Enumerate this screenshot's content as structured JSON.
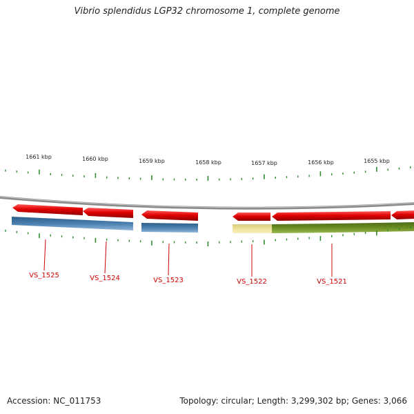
{
  "title": "Vibrio splendidus LGP32 chromosome 1, complete genome",
  "accession": "Accession: NC_011753",
  "summary": "Topology: circular; Length: 3,299,302 bp; Genes: 3,066",
  "ruler": {
    "labels": [
      "1661 kbp",
      "1660 kbp",
      "1659 kbp",
      "1658 kbp",
      "1657 kbp",
      "1656 kbp",
      "1655 kbp"
    ]
  },
  "genes": [
    "VS_1525",
    "VS_1524",
    "VS_1523",
    "VS_1522",
    "VS_1521"
  ],
  "colors": {
    "forward_cds": "#e00000",
    "gene_blue": "#4a7fb0",
    "gene_olive": "#6b8e23",
    "gene_yellow": "#efe39a",
    "backbone": "#8a8a8a",
    "ticks": "#2e8b2e",
    "label_red": "#d00000"
  }
}
